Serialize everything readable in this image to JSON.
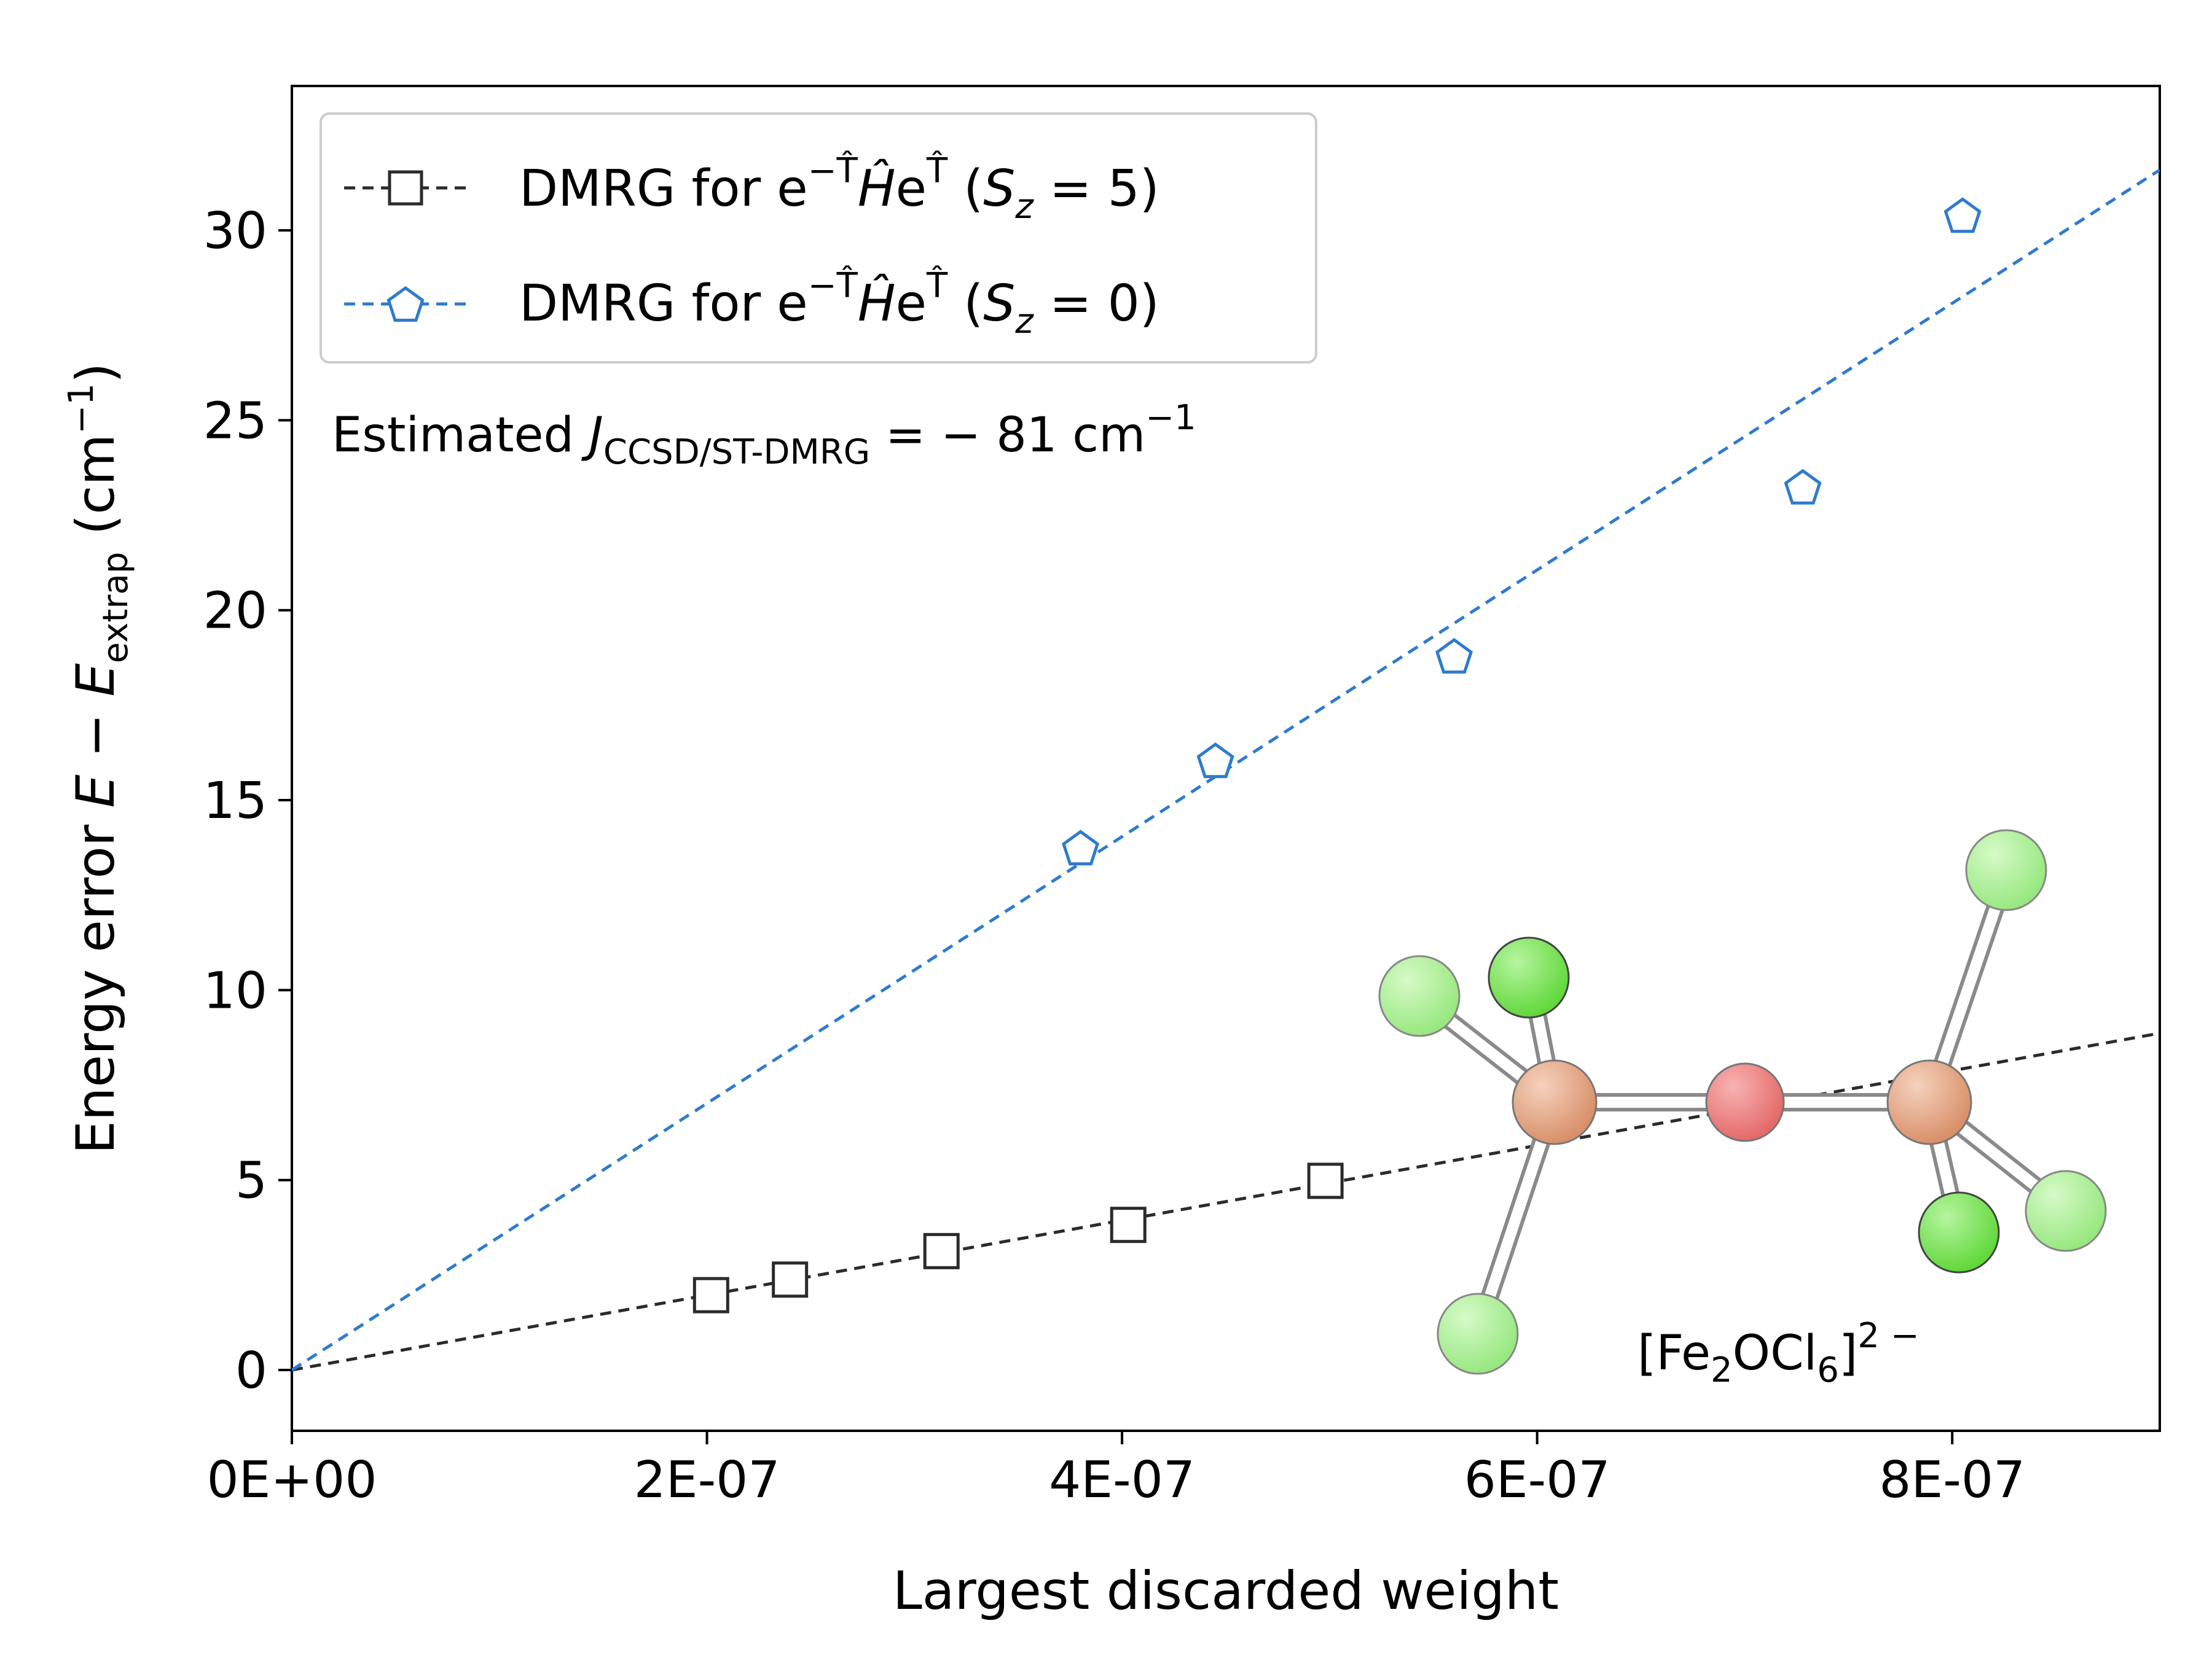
{
  "chart_data": {
    "type": "scatter",
    "xlabel": "Largest discarded weight",
    "ylabel_main": "Energy error ",
    "ylabel_italic_E": "E",
    "ylabel_minus": " − ",
    "ylabel_sub": "extrap",
    "ylabel_unit_open": " (cm",
    "ylabel_unit_sup": "−1",
    "ylabel_unit_close": ")",
    "xlim": [
      0,
      9e-07
    ],
    "ylim": [
      -1.6,
      33.8
    ],
    "x_ticks": [
      0,
      2e-07,
      4e-07,
      6e-07,
      8e-07
    ],
    "x_tick_labels": [
      "0E+00",
      "2E-07",
      "4E-07",
      "6E-07",
      "8E-07"
    ],
    "y_ticks": [
      0,
      5,
      10,
      15,
      20,
      25,
      30
    ],
    "y_tick_labels": [
      "0",
      "5",
      "10",
      "15",
      "20",
      "25",
      "30"
    ],
    "grid": false,
    "legend_position": "top-left",
    "series": [
      {
        "name": "DMRG for e^{-T}He^{T} (Sz = 5)",
        "legend_prefix": "DMRG for e",
        "legend_sup": "−T̂",
        "legend_mid": "Ĥ",
        "legend_e": "e",
        "legend_sup2": "T̂",
        "legend_paren_open": " (",
        "legend_S": "S",
        "legend_sub": "z",
        "legend_value": " = 5)",
        "marker": "square",
        "color": "#2b2b2b",
        "x": [
          2.02e-07,
          2.4e-07,
          3.13e-07,
          4.03e-07,
          4.98e-07
        ],
        "y": [
          1.97,
          2.38,
          3.13,
          3.82,
          4.98
        ],
        "fit_slope": 9850000.0,
        "fit_intercept": 0
      },
      {
        "name": "DMRG for e^{-T}He^{T} (Sz = 0)",
        "legend_prefix": "DMRG for e",
        "legend_sup": "−T̂",
        "legend_mid": "Ĥ",
        "legend_e": "e",
        "legend_sup2": "T̂",
        "legend_paren_open": " (",
        "legend_S": "S",
        "legend_sub": "z",
        "legend_value": " = 0)",
        "marker": "pentagon",
        "color": "#2e7bcf",
        "x": [
          3.8e-07,
          4.45e-07,
          5.6e-07,
          7.28e-07,
          8.05e-07
        ],
        "y": [
          13.75,
          16.05,
          18.8,
          23.25,
          30.4
        ],
        "fit_slope": 35100000.0,
        "fit_intercept": 0
      }
    ],
    "annotations": {
      "estimate_prefix": "Estimated ",
      "estimate_J": "J",
      "estimate_sub": "CCSD/ST-DMRG",
      "estimate_value": " = − 81 cm",
      "estimate_sup": "−1",
      "molecule_open": "[Fe",
      "molecule_sub1": "2",
      "molecule_mid": "OCl",
      "molecule_sub2": "6",
      "molecule_close": "]",
      "molecule_sup": "2 −"
    },
    "molecule_colors": {
      "fe": "#e0a080",
      "o": "#ee7878",
      "cl": "#7ee85a",
      "cl_light": "#a8f090"
    }
  }
}
